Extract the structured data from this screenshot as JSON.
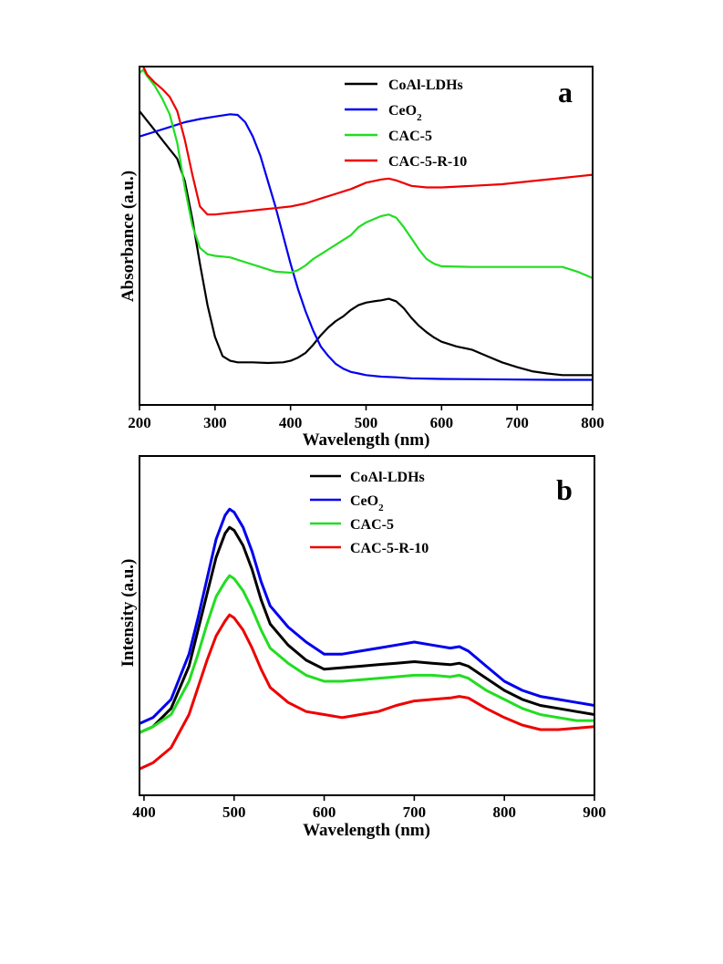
{
  "chart_data": [
    {
      "type": "line",
      "panel_label": "a",
      "xlabel": "Wavelength (nm)",
      "ylabel": "Absorbance (a.u.)",
      "xlim": [
        200,
        800
      ],
      "ylim": [
        0,
        1
      ],
      "xticks": [
        200,
        300,
        400,
        500,
        600,
        700,
        800
      ],
      "yticks_shown": false,
      "grid": false,
      "legend_position": "top-right",
      "series": [
        {
          "name": "CoAl-LDHs",
          "color": "#000000",
          "x": [
            200,
            210,
            220,
            230,
            240,
            250,
            260,
            270,
            280,
            290,
            300,
            310,
            320,
            330,
            350,
            370,
            390,
            400,
            410,
            420,
            430,
            440,
            450,
            460,
            470,
            480,
            490,
            500,
            510,
            520,
            530,
            540,
            550,
            560,
            570,
            580,
            590,
            600,
            620,
            640,
            660,
            680,
            700,
            720,
            740,
            760,
            780,
            800
          ],
          "y": [
            0.86,
            0.83,
            0.8,
            0.77,
            0.74,
            0.71,
            0.64,
            0.52,
            0.38,
            0.25,
            0.15,
            0.09,
            0.075,
            0.07,
            0.07,
            0.068,
            0.07,
            0.075,
            0.085,
            0.1,
            0.125,
            0.155,
            0.18,
            0.2,
            0.215,
            0.235,
            0.25,
            0.258,
            0.262,
            0.265,
            0.27,
            0.262,
            0.24,
            0.21,
            0.185,
            0.165,
            0.148,
            0.135,
            0.12,
            0.11,
            0.09,
            0.07,
            0.055,
            0.042,
            0.035,
            0.03,
            0.03,
            0.03
          ]
        },
        {
          "name": "CeO2",
          "color": "#0000ee",
          "x": [
            200,
            220,
            240,
            260,
            280,
            300,
            320,
            330,
            340,
            350,
            360,
            370,
            380,
            390,
            400,
            410,
            420,
            430,
            440,
            450,
            460,
            470,
            480,
            490,
            500,
            520,
            540,
            560,
            600,
            650,
            700,
            750,
            800
          ],
          "y": [
            0.78,
            0.795,
            0.81,
            0.825,
            0.835,
            0.843,
            0.85,
            0.848,
            0.825,
            0.78,
            0.72,
            0.64,
            0.56,
            0.47,
            0.38,
            0.3,
            0.23,
            0.17,
            0.12,
            0.09,
            0.065,
            0.05,
            0.04,
            0.035,
            0.03,
            0.025,
            0.023,
            0.02,
            0.018,
            0.017,
            0.016,
            0.015,
            0.015
          ]
        },
        {
          "name": "CAC-5",
          "color": "#22dd22",
          "x": [
            200,
            205,
            210,
            220,
            230,
            240,
            250,
            260,
            270,
            280,
            290,
            300,
            320,
            340,
            360,
            380,
            400,
            410,
            420,
            430,
            440,
            450,
            460,
            470,
            480,
            490,
            500,
            510,
            520,
            530,
            540,
            550,
            560,
            570,
            580,
            590,
            600,
            640,
            680,
            720,
            760,
            780,
            800
          ],
          "y": [
            0.98,
            0.99,
            0.97,
            0.94,
            0.9,
            0.85,
            0.76,
            0.62,
            0.5,
            0.43,
            0.41,
            0.405,
            0.4,
            0.385,
            0.37,
            0.355,
            0.352,
            0.36,
            0.375,
            0.395,
            0.41,
            0.425,
            0.44,
            0.455,
            0.47,
            0.495,
            0.51,
            0.52,
            0.53,
            0.535,
            0.525,
            0.495,
            0.46,
            0.425,
            0.395,
            0.38,
            0.372,
            0.37,
            0.37,
            0.37,
            0.37,
            0.355,
            0.335
          ]
        },
        {
          "name": "CAC-5-R-10",
          "color": "#ee0000",
          "x": [
            200,
            205,
            210,
            220,
            230,
            240,
            250,
            260,
            270,
            280,
            290,
            300,
            320,
            340,
            360,
            380,
            400,
            420,
            440,
            460,
            480,
            500,
            520,
            530,
            540,
            560,
            580,
            600,
            640,
            680,
            720,
            760,
            800
          ],
          "y": [
            1.02,
            1.0,
            0.975,
            0.95,
            0.93,
            0.905,
            0.86,
            0.77,
            0.66,
            0.56,
            0.535,
            0.535,
            0.54,
            0.545,
            0.55,
            0.555,
            0.56,
            0.57,
            0.585,
            0.6,
            0.615,
            0.635,
            0.645,
            0.648,
            0.642,
            0.625,
            0.62,
            0.62,
            0.625,
            0.63,
            0.64,
            0.65,
            0.66
          ]
        }
      ]
    },
    {
      "type": "line",
      "panel_label": "b",
      "xlabel": "Wavelength (nm)",
      "ylabel": "Intensity (a.u.)",
      "xlim": [
        395,
        900
      ],
      "ylim": [
        0,
        1
      ],
      "xticks": [
        400,
        500,
        600,
        700,
        800,
        900
      ],
      "yticks_shown": false,
      "grid": false,
      "legend_position": "top-right",
      "series": [
        {
          "name": "CoAl-LDHs",
          "color": "#000000",
          "x": [
            395,
            410,
            430,
            450,
            460,
            470,
            480,
            490,
            495,
            500,
            510,
            520,
            530,
            540,
            560,
            580,
            600,
            620,
            640,
            660,
            680,
            700,
            720,
            740,
            750,
            760,
            780,
            800,
            820,
            840,
            860,
            880,
            900
          ],
          "y": [
            0.14,
            0.16,
            0.22,
            0.36,
            0.48,
            0.6,
            0.72,
            0.8,
            0.82,
            0.81,
            0.76,
            0.68,
            0.58,
            0.5,
            0.43,
            0.38,
            0.35,
            0.355,
            0.36,
            0.365,
            0.37,
            0.375,
            0.37,
            0.365,
            0.37,
            0.36,
            0.32,
            0.28,
            0.25,
            0.23,
            0.22,
            0.21,
            0.2
          ]
        },
        {
          "name": "CeO2",
          "color": "#0000ee",
          "x": [
            395,
            410,
            430,
            450,
            460,
            470,
            480,
            490,
            495,
            500,
            510,
            520,
            530,
            540,
            560,
            580,
            600,
            620,
            640,
            660,
            680,
            700,
            720,
            740,
            750,
            760,
            780,
            800,
            820,
            840,
            860,
            880,
            900
          ],
          "y": [
            0.17,
            0.19,
            0.25,
            0.4,
            0.52,
            0.65,
            0.78,
            0.86,
            0.88,
            0.87,
            0.82,
            0.74,
            0.64,
            0.56,
            0.49,
            0.44,
            0.4,
            0.4,
            0.41,
            0.42,
            0.43,
            0.44,
            0.43,
            0.42,
            0.425,
            0.41,
            0.36,
            0.31,
            0.28,
            0.26,
            0.25,
            0.24,
            0.23
          ]
        },
        {
          "name": "CAC-5",
          "color": "#22dd22",
          "x": [
            395,
            410,
            430,
            450,
            460,
            470,
            480,
            490,
            495,
            500,
            510,
            520,
            530,
            540,
            560,
            580,
            600,
            620,
            640,
            660,
            680,
            700,
            720,
            740,
            750,
            760,
            780,
            800,
            820,
            840,
            860,
            880,
            900
          ],
          "y": [
            0.14,
            0.16,
            0.2,
            0.31,
            0.4,
            0.5,
            0.59,
            0.64,
            0.66,
            0.65,
            0.61,
            0.55,
            0.48,
            0.42,
            0.37,
            0.33,
            0.31,
            0.31,
            0.315,
            0.32,
            0.325,
            0.33,
            0.33,
            0.325,
            0.33,
            0.32,
            0.28,
            0.25,
            0.22,
            0.2,
            0.19,
            0.18,
            0.18
          ]
        },
        {
          "name": "CAC-5-R-10",
          "color": "#ee0000",
          "x": [
            395,
            410,
            430,
            450,
            460,
            470,
            480,
            490,
            495,
            500,
            510,
            520,
            530,
            540,
            560,
            580,
            600,
            620,
            640,
            660,
            680,
            700,
            720,
            740,
            750,
            760,
            780,
            800,
            820,
            840,
            860,
            880,
            900
          ],
          "y": [
            0.02,
            0.04,
            0.09,
            0.2,
            0.29,
            0.38,
            0.46,
            0.51,
            0.53,
            0.52,
            0.48,
            0.42,
            0.35,
            0.29,
            0.24,
            0.21,
            0.2,
            0.19,
            0.2,
            0.21,
            0.23,
            0.245,
            0.25,
            0.255,
            0.26,
            0.255,
            0.22,
            0.19,
            0.165,
            0.15,
            0.15,
            0.155,
            0.16
          ]
        }
      ]
    }
  ]
}
